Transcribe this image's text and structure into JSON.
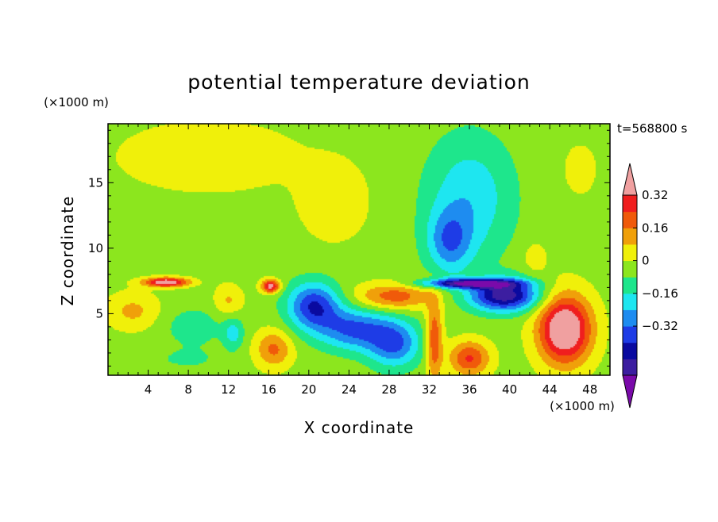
{
  "chart_data": {
    "type": "contour",
    "title": "potential temperature deviation",
    "xlabel": "X coordinate",
    "ylabel": "Z coordinate",
    "x_unit": "(×1000 m)",
    "y_unit": "(×1000 m)",
    "time_label": "t=568800 s",
    "xlim": [
      0,
      50
    ],
    "ylim": [
      0.3,
      19.5
    ],
    "x_ticks": [
      4,
      8,
      12,
      16,
      20,
      24,
      28,
      32,
      36,
      40,
      44,
      48
    ],
    "y_ticks": [
      5,
      10,
      15
    ],
    "colorbar": {
      "levels": [
        -0.48,
        -0.4,
        -0.32,
        -0.24,
        -0.16,
        -0.08,
        0,
        0.08,
        0.16,
        0.24,
        0.32,
        0.4
      ],
      "colors": [
        "#7a0aaa",
        "#3c1ea0",
        "#0a0aa0",
        "#1e3ce6",
        "#1e8cf0",
        "#1ee6f0",
        "#1ee68c",
        "#8ce61e",
        "#f0f00a",
        "#f0a00a",
        "#f05a0a",
        "#f01e1e",
        "#f0a0a0"
      ],
      "tick_labels": [
        "0.32",
        "0.16",
        "0",
        "−0.16",
        "−0.32"
      ],
      "tick_values": [
        0.32,
        0.16,
        0,
        -0.16,
        -0.32
      ]
    },
    "features": [
      {
        "x": 10,
        "z": 17,
        "sx": 10,
        "sz": 3,
        "amp": 0.07
      },
      {
        "x": 22.5,
        "z": 13.5,
        "sx": 3.2,
        "sz": 2.8,
        "amp": 0.1
      },
      {
        "x": 36,
        "z": 13.8,
        "sx": 4.4,
        "sz": 4.8,
        "amp": -0.19
      },
      {
        "x": 34,
        "z": 10.5,
        "sx": 2.2,
        "sz": 2.4,
        "amp": -0.23
      },
      {
        "x": 47,
        "z": 16,
        "sx": 3,
        "sz": 3.5,
        "amp": 0.04
      },
      {
        "x": 42.5,
        "z": 9.3,
        "sx": 1.2,
        "sz": 1.3,
        "amp": 0.08
      },
      {
        "x": 2.5,
        "z": 5.2,
        "sx": 2.6,
        "sz": 1.4,
        "amp": 0.13
      },
      {
        "x": 5.8,
        "z": 7.4,
        "sx": 2.2,
        "sz": 0.35,
        "amp": 0.44
      },
      {
        "x": 16.2,
        "z": 7.1,
        "sx": 0.9,
        "sz": 0.5,
        "amp": 0.4
      },
      {
        "x": 12,
        "z": 6,
        "sx": 1.4,
        "sz": 1.2,
        "amp": 0.12
      },
      {
        "x": 8.5,
        "z": 4,
        "sx": 3,
        "sz": 1.5,
        "amp": -0.1
      },
      {
        "x": 12.5,
        "z": 3.5,
        "sx": 1,
        "sz": 1.2,
        "amp": -0.16
      },
      {
        "x": 16.5,
        "z": 2.3,
        "sx": 1.8,
        "sz": 1.4,
        "amp": 0.21
      },
      {
        "x": 20.5,
        "z": 5.6,
        "sx": 2.6,
        "sz": 1.8,
        "amp": -0.37
      },
      {
        "x": 24.5,
        "z": 3.8,
        "sx": 3.5,
        "sz": 1.6,
        "amp": -0.3
      },
      {
        "x": 28.5,
        "z": 2.7,
        "sx": 2.6,
        "sz": 1.8,
        "amp": -0.3
      },
      {
        "x": 28.5,
        "z": 6.3,
        "sx": 3.8,
        "sz": 1,
        "amp": 0.24
      },
      {
        "x": 32.5,
        "z": 3,
        "sx": 0.8,
        "sz": 3,
        "amp": 0.27
      },
      {
        "x": 36,
        "z": 1.6,
        "sx": 2,
        "sz": 1.3,
        "amp": 0.28
      },
      {
        "x": 39.5,
        "z": 6.4,
        "sx": 3.4,
        "sz": 1.2,
        "amp": -0.5
      },
      {
        "x": 36,
        "z": 7.3,
        "sx": 4.5,
        "sz": 0.35,
        "amp": -0.5
      },
      {
        "x": 45.5,
        "z": 3.8,
        "sx": 2.6,
        "sz": 2.6,
        "amp": 0.5
      },
      {
        "x": 8,
        "z": 1.5,
        "sx": 3.5,
        "sz": 0.9,
        "amp": -0.06
      },
      {
        "x": 2.5,
        "z": 1.5,
        "sx": 2.5,
        "sz": 1,
        "amp": -0.03
      }
    ]
  }
}
